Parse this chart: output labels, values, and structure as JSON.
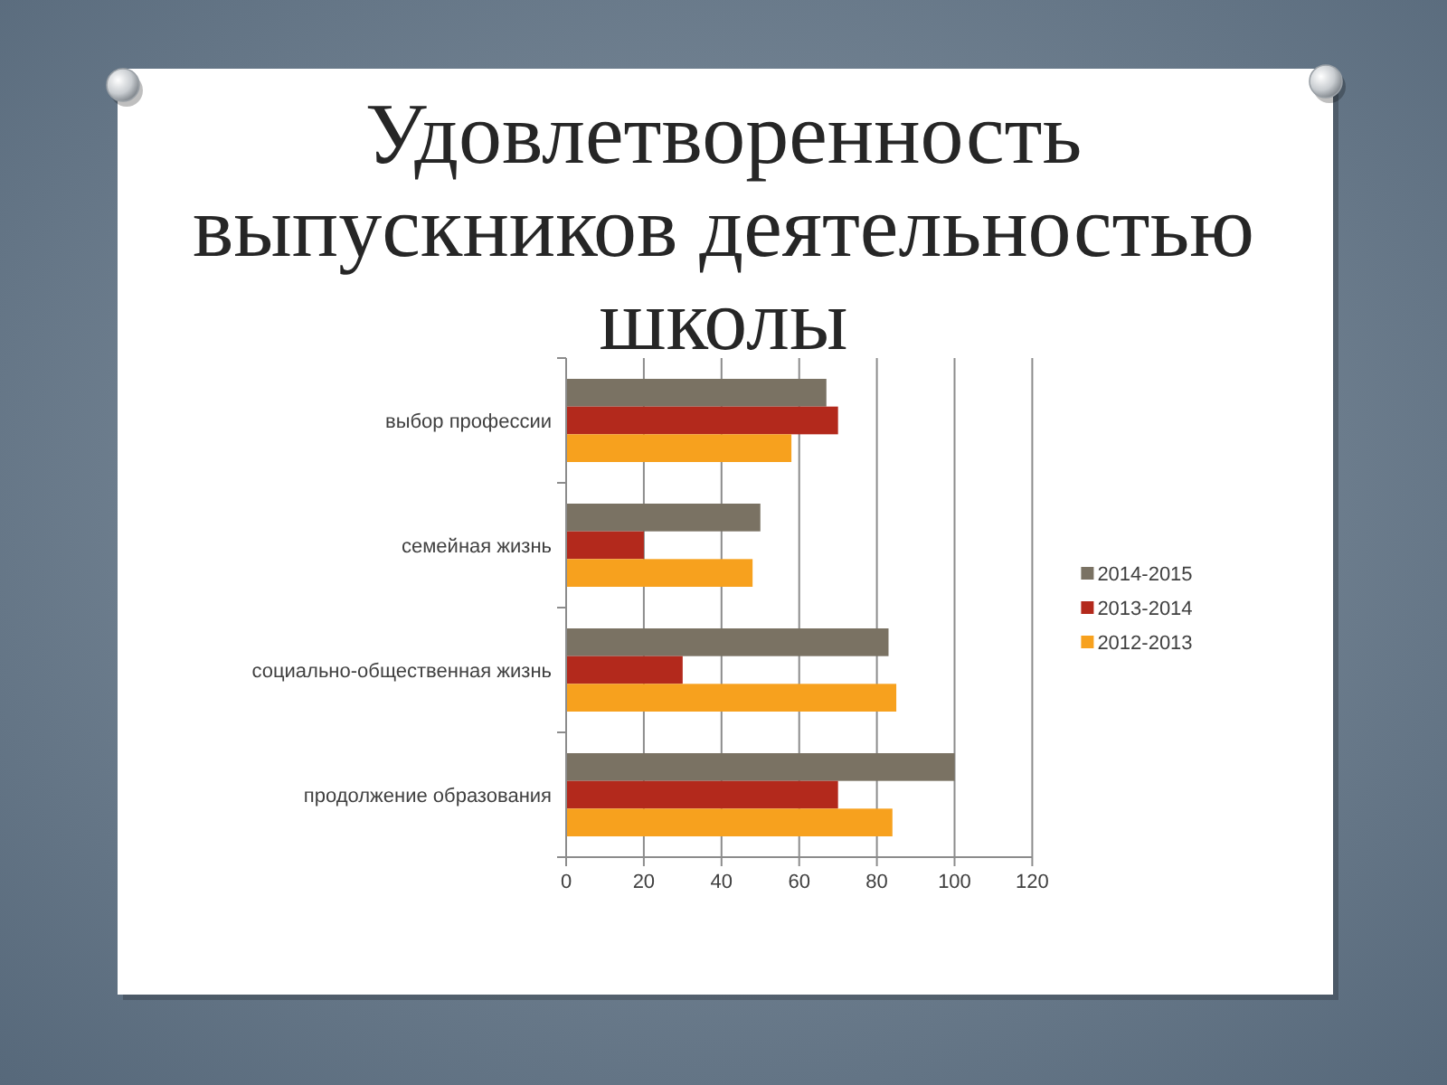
{
  "chart_data": {
    "type": "bar",
    "orientation": "horizontal",
    "title": "Удовлетворенность выпускников деятельностью школы",
    "categories": [
      "выбор профессии",
      "семейная жизнь",
      "социально-общественная жизнь",
      "продолжение образования"
    ],
    "series": [
      {
        "name": "2014-2015",
        "color": "#7a7263",
        "values": [
          67,
          50,
          83,
          100
        ]
      },
      {
        "name": "2013-2014",
        "color": "#b3291c",
        "values": [
          70,
          20,
          30,
          70
        ]
      },
      {
        "name": "2012-2013",
        "color": "#f7a11e",
        "values": [
          58,
          48,
          85,
          84
        ]
      }
    ],
    "xlim": [
      0,
      120
    ],
    "xticks": [
      0,
      20,
      40,
      60,
      80,
      100,
      120
    ],
    "grid": "x",
    "legend": "right"
  }
}
